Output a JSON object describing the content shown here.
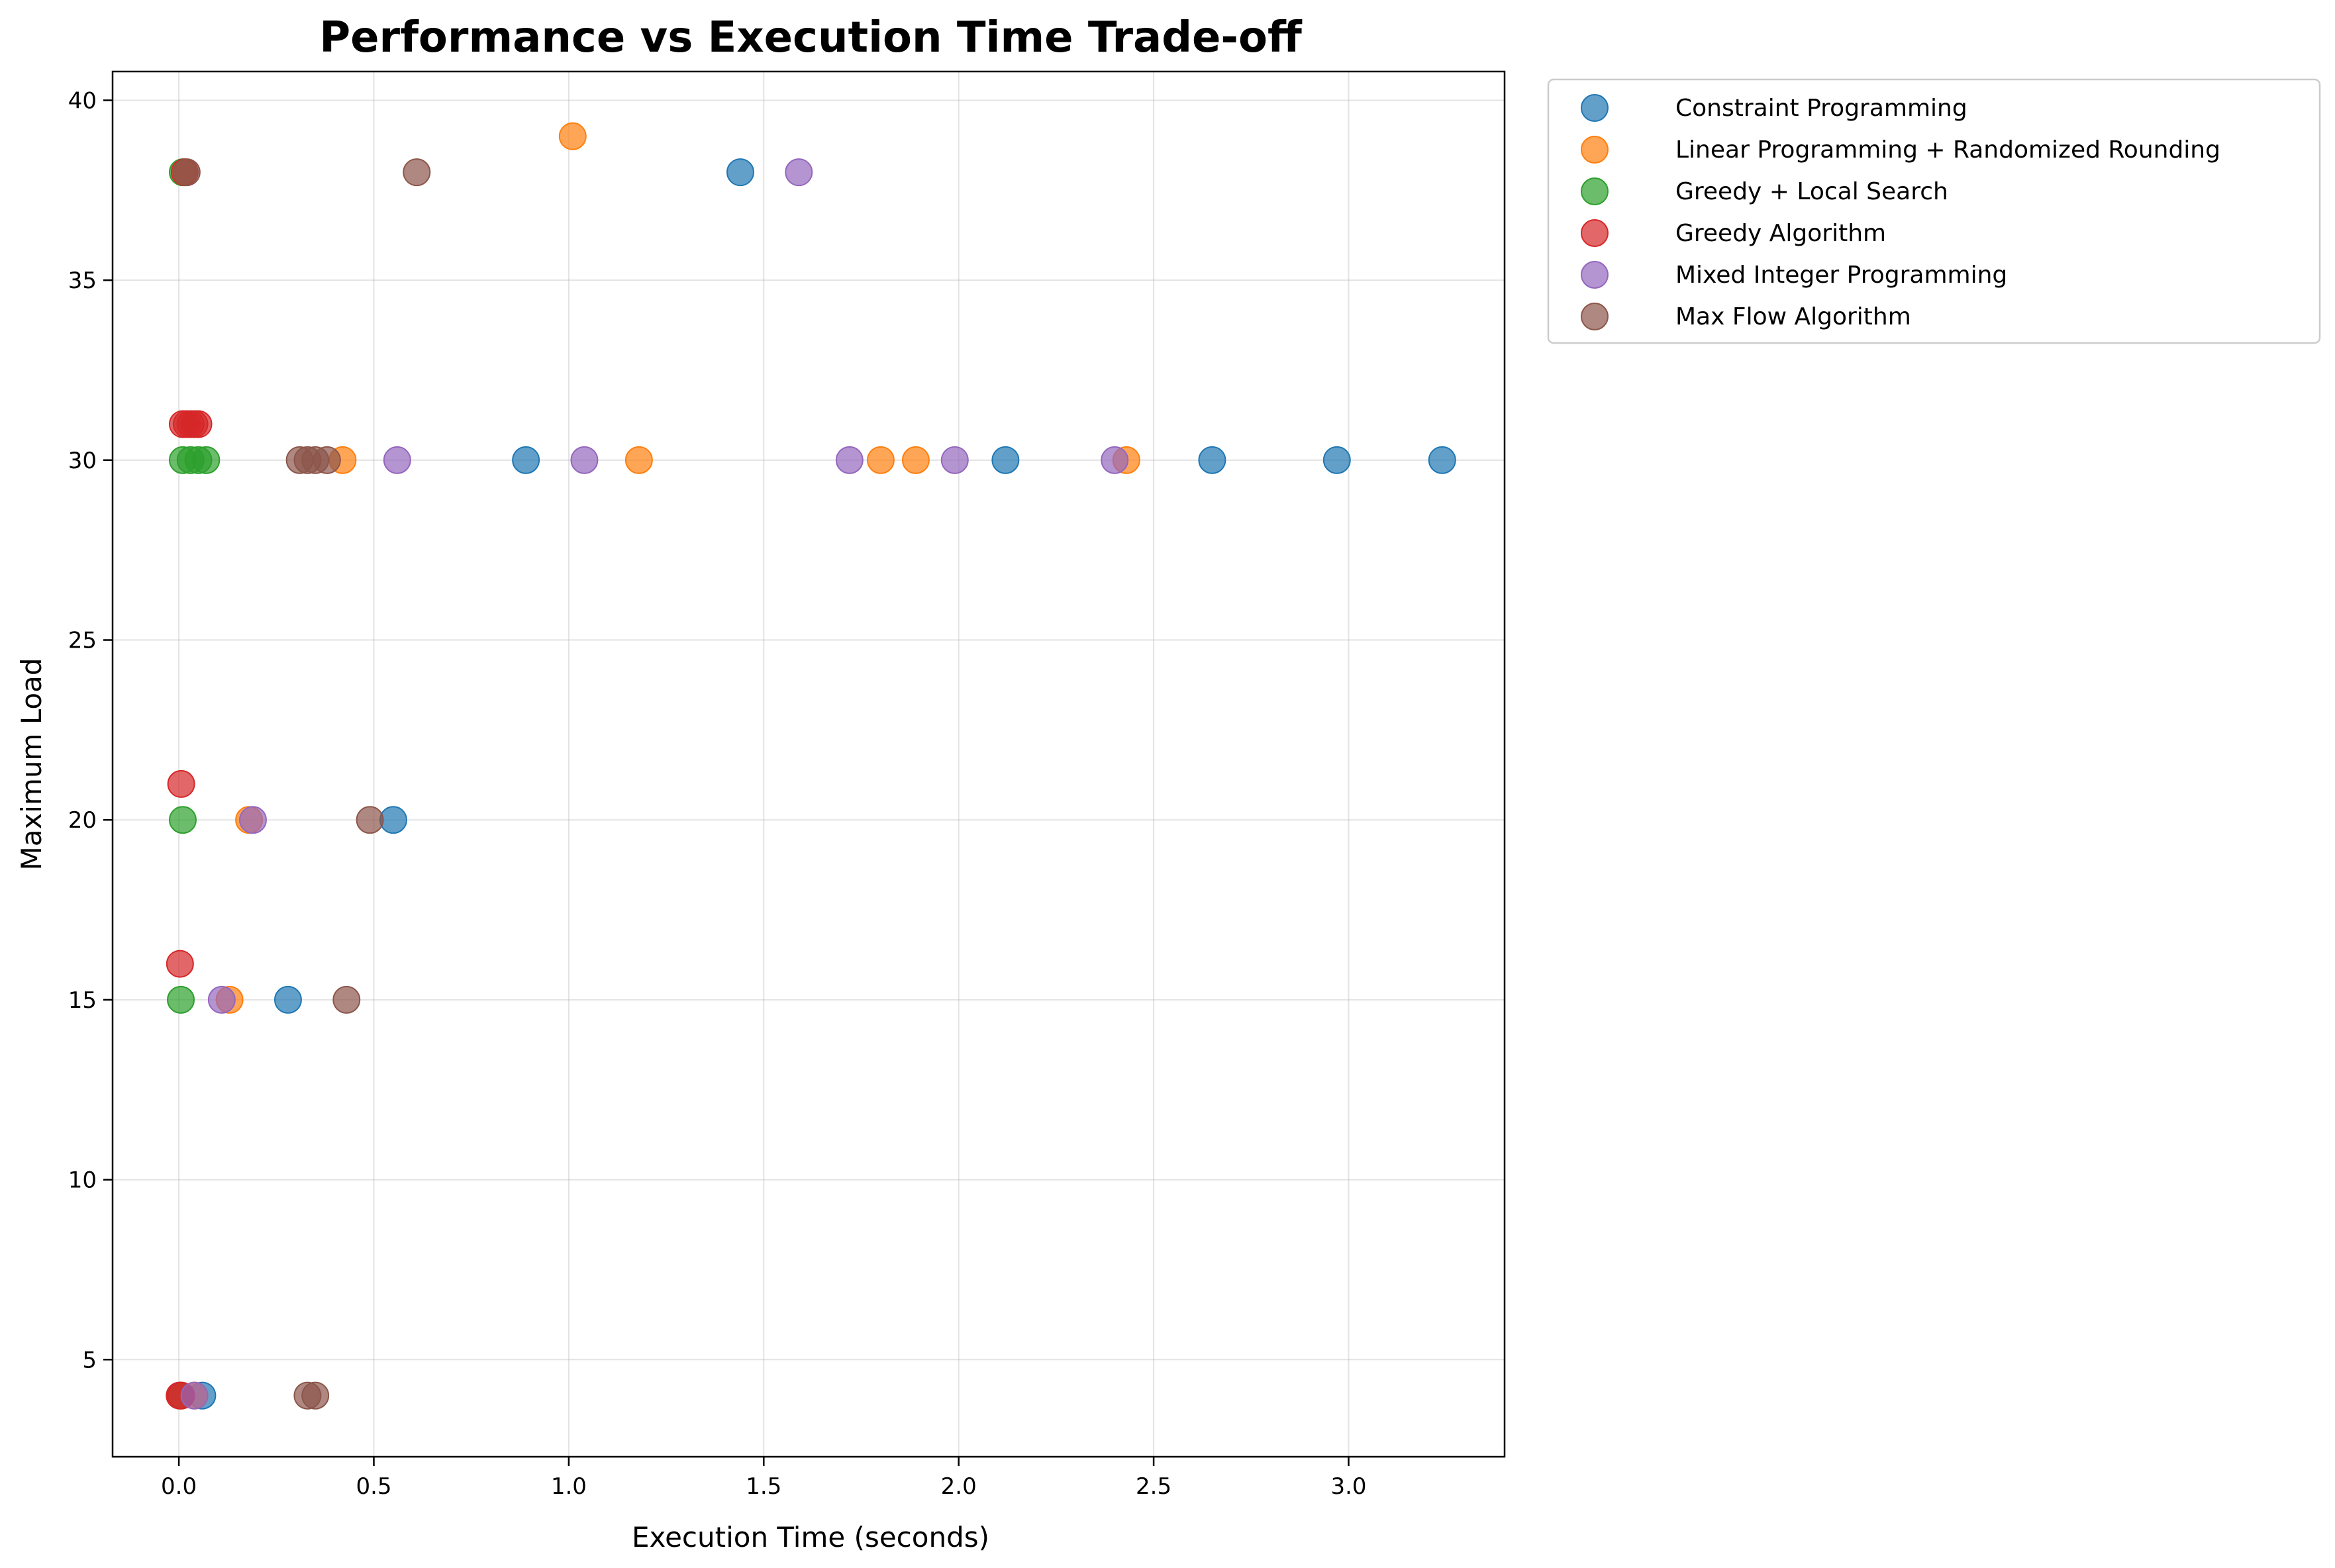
{
  "chart_data": {
    "type": "scatter",
    "title": "Performance vs Execution Time Trade-off",
    "xlabel": "Execution Time (seconds)",
    "ylabel": "Maximum Load",
    "xlim": [
      -0.17,
      3.4
    ],
    "ylim": [
      2.3,
      40.8
    ],
    "xticks": [
      0.0,
      0.5,
      1.0,
      1.5,
      2.0,
      2.5,
      3.0
    ],
    "xtick_labels": [
      "0.0",
      "0.5",
      "1.0",
      "1.5",
      "2.0",
      "2.5",
      "3.0"
    ],
    "yticks": [
      5,
      10,
      15,
      20,
      25,
      30,
      35,
      40
    ],
    "ytick_labels": [
      "5",
      "10",
      "15",
      "20",
      "25",
      "30",
      "35",
      "40"
    ],
    "grid": true,
    "legend_position": "outside-top-right",
    "series": [
      {
        "name": "Constraint Programming",
        "color": "#1f77b4",
        "points": [
          [
            0.06,
            4
          ],
          [
            0.28,
            15
          ],
          [
            0.55,
            20
          ],
          [
            0.89,
            30
          ],
          [
            2.12,
            30
          ],
          [
            2.65,
            30
          ],
          [
            2.97,
            30
          ],
          [
            3.24,
            30
          ],
          [
            1.44,
            38
          ]
        ]
      },
      {
        "name": "Linear Programming + Randomized Rounding",
        "color": "#ff7f0e",
        "points": [
          [
            0.04,
            4
          ],
          [
            0.13,
            15
          ],
          [
            0.18,
            20
          ],
          [
            0.42,
            30
          ],
          [
            1.18,
            30
          ],
          [
            1.8,
            30
          ],
          [
            1.89,
            30
          ],
          [
            2.43,
            30
          ],
          [
            1.01,
            39
          ]
        ]
      },
      {
        "name": "Greedy + Local Search",
        "color": "#2ca02c",
        "points": [
          [
            0.005,
            4
          ],
          [
            0.005,
            15
          ],
          [
            0.01,
            20
          ],
          [
            0.01,
            30
          ],
          [
            0.03,
            30
          ],
          [
            0.05,
            30
          ],
          [
            0.07,
            30
          ],
          [
            0.01,
            38
          ]
        ]
      },
      {
        "name": "Greedy Algorithm",
        "color": "#d62728",
        "points": [
          [
            0.002,
            4
          ],
          [
            0.006,
            4
          ],
          [
            0.003,
            16
          ],
          [
            0.006,
            21
          ],
          [
            0.01,
            31
          ],
          [
            0.02,
            31
          ],
          [
            0.03,
            31
          ],
          [
            0.04,
            31
          ],
          [
            0.05,
            31
          ],
          [
            0.015,
            38
          ]
        ]
      },
      {
        "name": "Mixed Integer Programming",
        "color": "#9467bd",
        "points": [
          [
            0.04,
            4
          ],
          [
            0.11,
            15
          ],
          [
            0.19,
            20
          ],
          [
            0.56,
            30
          ],
          [
            1.04,
            30
          ],
          [
            1.72,
            30
          ],
          [
            1.99,
            30
          ],
          [
            2.4,
            30
          ],
          [
            1.59,
            38
          ]
        ]
      },
      {
        "name": "Max Flow Algorithm",
        "color": "#8c564b",
        "points": [
          [
            0.33,
            4
          ],
          [
            0.35,
            4
          ],
          [
            0.43,
            15
          ],
          [
            0.49,
            20
          ],
          [
            0.31,
            30
          ],
          [
            0.33,
            30
          ],
          [
            0.35,
            30
          ],
          [
            0.38,
            30
          ],
          [
            0.02,
            38
          ],
          [
            0.61,
            38
          ]
        ]
      }
    ]
  }
}
